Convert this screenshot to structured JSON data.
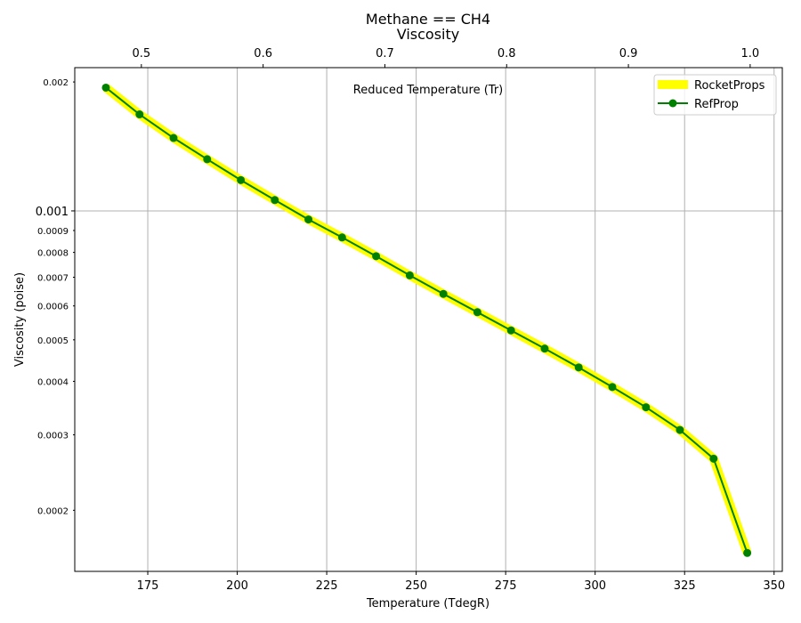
{
  "chart_data": {
    "type": "line",
    "title": "Methane == CH4",
    "subtitle": "Viscosity",
    "xlabel": "Temperature (TdegR)",
    "ylabel": "Viscosity (poise)",
    "top_xlabel": "Reduced Temperature (Tr)",
    "y_scale": "log",
    "xlim": [
      154.6,
      352.3
    ],
    "ylim": [
      0.000144,
      0.00216
    ],
    "top_xlim": [
      0.4453,
      1.0264
    ],
    "grid": true,
    "legend_position": "top-right",
    "x_ticks": [
      175,
      200,
      225,
      250,
      275,
      300,
      325,
      350
    ],
    "x_tick_labels": [
      "175",
      "200",
      "225",
      "250",
      "275",
      "300",
      "325",
      "350"
    ],
    "top_x_ticks": [
      0.5,
      0.6,
      0.7,
      0.8,
      0.9,
      1.0
    ],
    "top_x_tick_labels": [
      "0.5",
      "0.6",
      "0.7",
      "0.8",
      "0.9",
      "1.0"
    ],
    "y_major_ticks": [
      0.001
    ],
    "y_major_tick_labels": [
      "0.001"
    ],
    "y_minor_ticks": [
      0.002,
      0.0009,
      0.0008,
      0.0007,
      0.0006,
      0.0005,
      0.0004,
      0.0003,
      0.0002
    ],
    "y_minor_tick_labels": [
      "0.002",
      "0.0009",
      "0.0008",
      "0.0007",
      "0.0006",
      "0.0005",
      "0.0004",
      "0.0003",
      "0.0002"
    ],
    "x": [
      163.3,
      172.7,
      182.2,
      191.6,
      201.0,
      210.5,
      219.9,
      229.3,
      238.8,
      248.2,
      257.6,
      267.1,
      276.5,
      285.9,
      295.4,
      304.8,
      314.2,
      323.7,
      333.1,
      342.5
    ],
    "series": [
      {
        "name": "RocketProps",
        "color": "#ffff00",
        "values": [
          0.00194,
          0.00168,
          0.00148,
          0.00132,
          0.00118,
          0.00106,
          0.000955,
          0.000867,
          0.000784,
          0.000707,
          0.00064,
          0.00058,
          0.000526,
          0.000477,
          0.000431,
          0.000388,
          0.000348,
          0.000308,
          0.000264,
          0.000159
        ]
      },
      {
        "name": "RefProp",
        "color": "#008000",
        "marker": "circle",
        "values": [
          0.00194,
          0.00168,
          0.00148,
          0.00132,
          0.00118,
          0.00106,
          0.000955,
          0.000867,
          0.000784,
          0.000707,
          0.00064,
          0.00058,
          0.000526,
          0.000477,
          0.000431,
          0.000388,
          0.000348,
          0.000308,
          0.000264,
          0.000159
        ]
      }
    ]
  }
}
